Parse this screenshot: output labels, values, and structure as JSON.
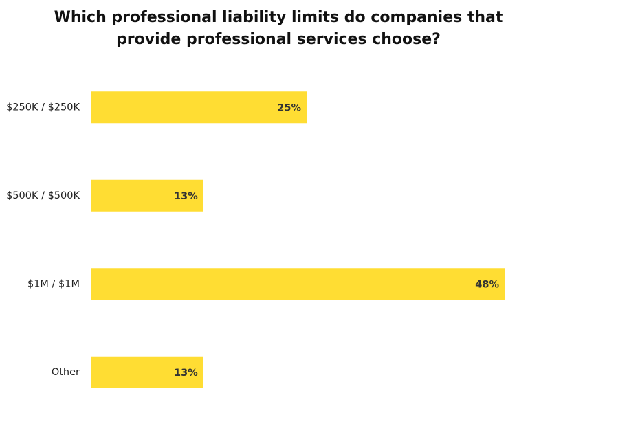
{
  "chart_data": {
    "type": "bar",
    "orientation": "horizontal",
    "title": "Which professional liability limits do companies that\nprovide professional services choose?",
    "categories": [
      "$250K / $250K",
      "$500K / $500K",
      "$1M / $1M",
      "Other"
    ],
    "values": [
      25,
      13,
      48,
      13
    ],
    "value_labels": [
      "25%",
      "13%",
      "48%",
      "13%"
    ],
    "unit": "%",
    "xlim": [
      0,
      60
    ],
    "grid": false,
    "legend": "none",
    "bar_color": "#FFDD33",
    "axis_color": "#D9D9D9"
  }
}
